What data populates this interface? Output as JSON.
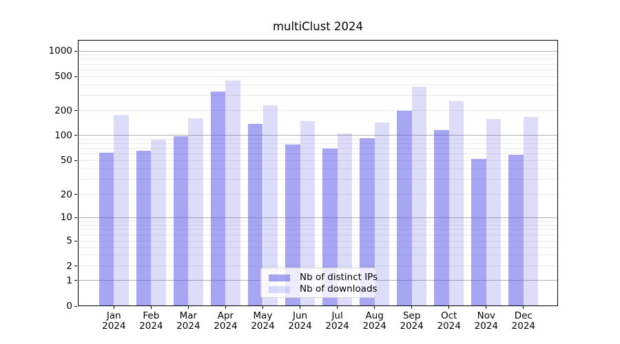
{
  "title": "multiClust 2024",
  "chart_data": {
    "type": "bar",
    "title": "multiClust 2024",
    "categories": [
      "Jan 2024",
      "Feb 2024",
      "Mar 2024",
      "Apr 2024",
      "May 2024",
      "Jun 2024",
      "Jul 2024",
      "Aug 2024",
      "Sep 2024",
      "Oct 2024",
      "Nov 2024",
      "Dec 2024"
    ],
    "series": [
      {
        "name": "Nb of distinct IPs",
        "color": "rgba(72,72,229,0.485)",
        "values": [
          62,
          66,
          98,
          335,
          137,
          78,
          70,
          93,
          200,
          116,
          52,
          58
        ]
      },
      {
        "name": "Nb of downloads",
        "color": "rgba(72,72,229,0.19)",
        "values": [
          175,
          88,
          160,
          445,
          228,
          148,
          106,
          143,
          380,
          255,
          158,
          166
        ]
      }
    ],
    "xlabel": "",
    "ylabel": "",
    "yscale": "symlog",
    "yticks": [
      0,
      1,
      2,
      5,
      10,
      20,
      50,
      100,
      200,
      500,
      1000
    ],
    "ylim": [
      0,
      1300
    ],
    "grid": true,
    "legend_position": "lower center"
  },
  "colors": {
    "grid_major": "#b0b0b0",
    "grid_minor": "#eaeaea",
    "spine": "#000000",
    "background": "#ffffff"
  }
}
